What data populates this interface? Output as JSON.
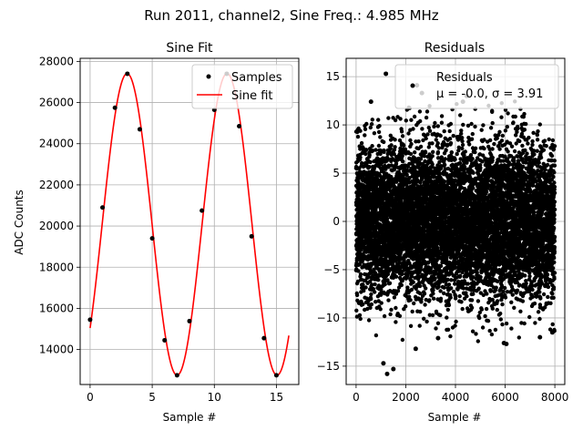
{
  "suptitle": "Run 2011, channel2, Sine Freq.: 4.985 MHz",
  "chart_data": [
    {
      "type": "scatter+line",
      "title": "Sine Fit",
      "xlabel": "Sample #",
      "ylabel": "ADC Counts",
      "xlim": [
        -0.8,
        16.8
      ],
      "ylim": [
        12300,
        28150
      ],
      "xticks": [
        0,
        5,
        10,
        15
      ],
      "yticks": [
        14000,
        16000,
        18000,
        20000,
        22000,
        24000,
        26000,
        28000
      ],
      "grid": true,
      "legend": {
        "placement": "top-right",
        "entries": [
          "Samples",
          "Sine fit"
        ]
      },
      "series": [
        {
          "name": "Samples",
          "kind": "scatter",
          "color": "#000000",
          "x": [
            0,
            1,
            2,
            3,
            4,
            5,
            6,
            7,
            8,
            9,
            10,
            11,
            12,
            13,
            14,
            15
          ],
          "y": [
            15450,
            20900,
            25750,
            27400,
            24700,
            19400,
            14450,
            12750,
            15380,
            20750,
            25650,
            27400,
            24850,
            19500,
            14550,
            12750
          ]
        },
        {
          "name": "Sine fit",
          "kind": "line",
          "color": "#ff0000",
          "model": {
            "offset": 20080,
            "amplitude": 7330,
            "period": 8.045,
            "phase_sample": 0.97,
            "x_range": [
              0,
              16
            ]
          }
        }
      ]
    },
    {
      "type": "scatter",
      "title": "Residuals",
      "xlabel": "Sample #",
      "ylabel": "",
      "xlim": [
        -400,
        8400
      ],
      "ylim": [
        -16.9,
        16.9
      ],
      "xticks": [
        0,
        2000,
        4000,
        6000,
        8000
      ],
      "yticks": [
        -15,
        -10,
        -5,
        0,
        5,
        10,
        15
      ],
      "grid": true,
      "legend": {
        "placement": "top-right",
        "entries": [
          "Residuals",
          "μ = -0.0, σ = 3.91"
        ]
      },
      "series": [
        {
          "name": "Residuals",
          "kind": "scatter",
          "color": "#000000",
          "n_points": 8000,
          "x_range": [
            0,
            7999
          ],
          "mean": -0.0,
          "sigma": 3.91,
          "outliers": [
            [
              1200,
              15.3
            ],
            [
              1250,
              -15.8
            ],
            [
              1500,
              -15.3
            ],
            [
              1100,
              -14.7
            ],
            [
              2450,
              14.1
            ],
            [
              2400,
              -13.2
            ],
            [
              5950,
              -12.6
            ],
            [
              6050,
              -12.7
            ],
            [
              3300,
              -12.1
            ],
            [
              7400,
              -12.0
            ],
            [
              7900,
              -11.5
            ],
            [
              2650,
              13.3
            ],
            [
              4450,
              13.0
            ],
            [
              4300,
              12.4
            ],
            [
              600,
              12.4
            ]
          ]
        }
      ]
    }
  ]
}
